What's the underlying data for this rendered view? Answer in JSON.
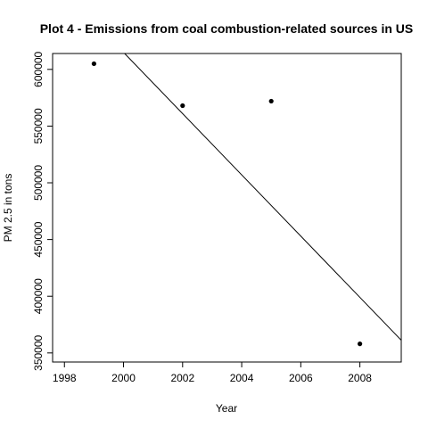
{
  "chart_data": {
    "type": "scatter",
    "title": "Plot 4 - Emissions from coal combustion-related sources in US",
    "xlabel": "Year",
    "ylabel": "PM 2.5 in tons",
    "xlim": [
      1997.6,
      2009.4
    ],
    "ylim": [
      342000,
      614000
    ],
    "xticks": [
      1998,
      2000,
      2002,
      2004,
      2006,
      2008
    ],
    "yticks": [
      350000,
      400000,
      450000,
      500000,
      550000,
      600000
    ],
    "points": [
      {
        "x": 1999,
        "y": 605000
      },
      {
        "x": 2002,
        "y": 568000
      },
      {
        "x": 2005,
        "y": 572000
      },
      {
        "x": 2008,
        "y": 358000
      }
    ],
    "regression_line": {
      "x0": 1999,
      "y0": 642000,
      "x1": 2008,
      "y1": 399000
    },
    "grid": false,
    "legend": "none"
  }
}
